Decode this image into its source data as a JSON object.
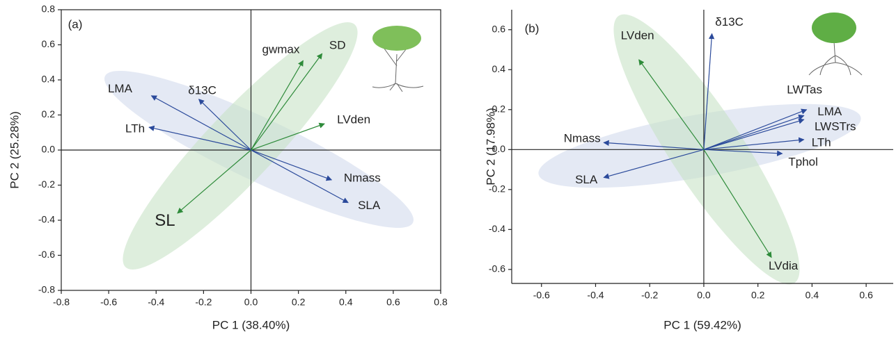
{
  "chart_data": [
    {
      "type": "biplot",
      "panel_label": "(a)",
      "xlabel": "PC 1 (38.40%)",
      "ylabel": "PC 2 (25.28%)",
      "xlim": [
        -0.8,
        0.8
      ],
      "ylim": [
        -0.8,
        0.8
      ],
      "xticks": [
        -0.8,
        -0.6,
        -0.4,
        -0.2,
        {
          "value": 0,
          "label": "0.0"
        },
        0.2,
        0.4,
        0.6,
        0.8
      ],
      "yticks": [
        -0.8,
        -0.6,
        -0.4,
        -0.2,
        {
          "value": 0,
          "label": "0.0"
        },
        0.2,
        0.4,
        0.6,
        0.8
      ],
      "vectors": [
        {
          "label": "LMA",
          "color": "#2b4a9b",
          "x": -0.42,
          "y": 0.31
        },
        {
          "label": "LTh",
          "color": "#2b4a9b",
          "x": -0.43,
          "y": 0.13
        },
        {
          "label": "δ13C",
          "color": "#2b4a9b",
          "x": -0.22,
          "y": 0.29
        },
        {
          "label": "gwmax",
          "color": "#2e8b3a",
          "x": 0.22,
          "y": 0.51
        },
        {
          "label": "SD",
          "color": "#2e8b3a",
          "x": 0.3,
          "y": 0.55
        },
        {
          "label": "LVden",
          "color": "#2e8b3a",
          "x": 0.31,
          "y": 0.15
        },
        {
          "label": "Nmass",
          "color": "#2b4a9b",
          "x": 0.34,
          "y": -0.17
        },
        {
          "label": "SLA",
          "color": "#2b4a9b",
          "x": 0.41,
          "y": -0.3
        },
        {
          "label": "SL",
          "color": "#2e8b3a",
          "x": -0.31,
          "y": -0.36
        }
      ]
    },
    {
      "type": "biplot",
      "panel_label": "(b)",
      "xlabel": "PC 1 (59.42%)",
      "ylabel": "PC 2 (17.98%)",
      "xlim": [
        -0.71,
        0.7
      ],
      "ylim": [
        -0.67,
        0.7
      ],
      "xticks": [
        -0.6,
        -0.4,
        -0.2,
        {
          "value": 0,
          "label": "0.0"
        },
        0.2,
        0.4,
        0.6
      ],
      "yticks": [
        -0.6,
        -0.4,
        -0.2,
        {
          "value": 0,
          "label": "0.0"
        },
        0.2,
        0.4,
        0.6
      ],
      "vectors": [
        {
          "label": "δ13C",
          "color": "#2b4a9b",
          "x": 0.03,
          "y": 0.58
        },
        {
          "label": "LVden",
          "color": "#2e8b3a",
          "x": -0.24,
          "y": 0.45
        },
        {
          "label": "LWTas",
          "color": "#2b4a9b",
          "x": 0.38,
          "y": 0.2
        },
        {
          "label": "LMA",
          "color": "#2b4a9b",
          "x": 0.37,
          "y": 0.17
        },
        {
          "label": "LWSTrs",
          "color": "#2b4a9b",
          "x": 0.37,
          "y": 0.15
        },
        {
          "label": "LTh",
          "color": "#2b4a9b",
          "x": 0.37,
          "y": 0.05
        },
        {
          "label": "Tphol",
          "color": "#2b4a9b",
          "x": 0.29,
          "y": -0.02
        },
        {
          "label": "Nmass",
          "color": "#2b4a9b",
          "x": -0.37,
          "y": 0.035
        },
        {
          "label": "SLA",
          "color": "#2b4a9b",
          "x": -0.37,
          "y": -0.14
        },
        {
          "label": "LVdia",
          "color": "#2e8b3a",
          "x": 0.25,
          "y": -0.54
        }
      ]
    }
  ]
}
